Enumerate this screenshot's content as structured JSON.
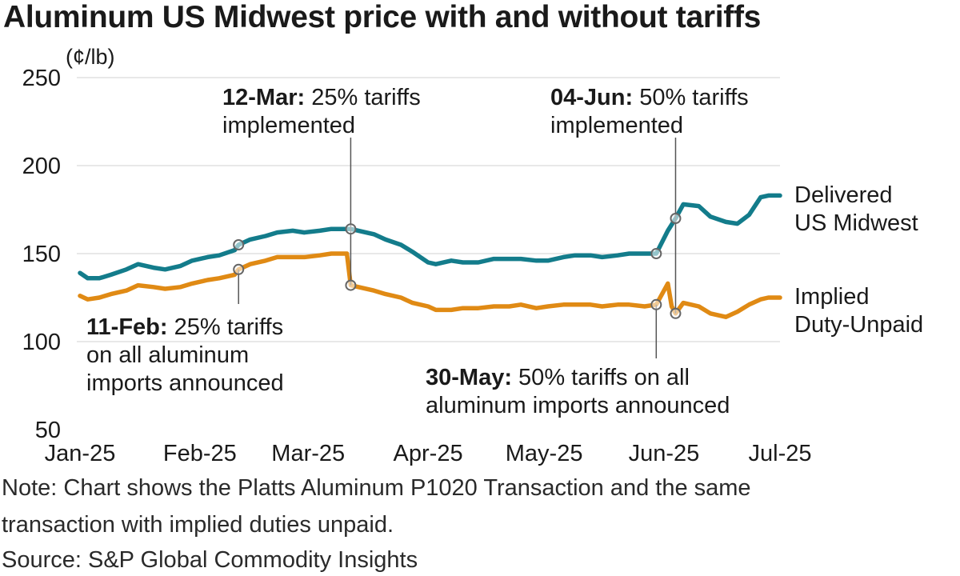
{
  "title": "Aluminum US Midwest price with and without tariffs",
  "notes": {
    "note_line1": "Note: Chart shows the Platts Aluminum P1020 Transaction and the same",
    "note_line2": "transaction with implied duties unpaid.",
    "source": "Source: S&P Global Commodity Insights"
  },
  "colors": {
    "midwest": "#137c8b",
    "unpaid": "#e08a14",
    "grid": "#d9d9d9",
    "text": "#1a1a1a"
  },
  "chart_data": {
    "type": "line",
    "title": "Aluminum US Midwest price with and without tariffs",
    "unit_label": "(¢/lb)",
    "xlabel": "",
    "ylabel": "",
    "ylim": [
      50,
      250
    ],
    "yticks": [
      50,
      100,
      150,
      200,
      250
    ],
    "grid": true,
    "x_range": [
      "2025-01-01",
      "2025-07-01"
    ],
    "x_tick_labels": [
      "Jan-25",
      "Feb-25",
      "Mar-25",
      "Apr-25",
      "May-25",
      "Jun-25",
      "Jul-25"
    ],
    "x_tick_dates": [
      "2025-01-01",
      "2025-02-01",
      "2025-03-01",
      "2025-04-01",
      "2025-05-01",
      "2025-06-01",
      "2025-07-01"
    ],
    "series": [
      {
        "name": "Delivered US Midwest",
        "label_lines": [
          "Delivered",
          "US Midwest"
        ],
        "color_key": "midwest",
        "x": [
          "2025-01-01",
          "2025-01-03",
          "2025-01-06",
          "2025-01-09",
          "2025-01-13",
          "2025-01-16",
          "2025-01-20",
          "2025-01-23",
          "2025-01-27",
          "2025-01-30",
          "2025-02-03",
          "2025-02-06",
          "2025-02-10",
          "2025-02-11",
          "2025-02-14",
          "2025-02-18",
          "2025-02-21",
          "2025-02-25",
          "2025-02-28",
          "2025-03-04",
          "2025-03-07",
          "2025-03-12",
          "2025-03-14",
          "2025-03-18",
          "2025-03-21",
          "2025-03-25",
          "2025-03-28",
          "2025-04-01",
          "2025-04-03",
          "2025-04-07",
          "2025-04-10",
          "2025-04-14",
          "2025-04-18",
          "2025-04-22",
          "2025-04-25",
          "2025-04-29",
          "2025-05-02",
          "2025-05-06",
          "2025-05-09",
          "2025-05-13",
          "2025-05-16",
          "2025-05-20",
          "2025-05-23",
          "2025-05-27",
          "2025-05-30",
          "2025-06-02",
          "2025-06-04",
          "2025-06-06",
          "2025-06-10",
          "2025-06-13",
          "2025-06-17",
          "2025-06-20",
          "2025-06-23",
          "2025-06-26",
          "2025-06-28",
          "2025-07-01"
        ],
        "values": [
          139,
          136,
          136,
          138,
          141,
          144,
          142,
          141,
          143,
          146,
          148,
          149,
          152,
          155,
          158,
          160,
          162,
          163,
          162,
          163,
          164,
          164,
          163,
          161,
          158,
          155,
          151,
          145,
          144,
          146,
          145,
          145,
          147,
          147,
          147,
          146,
          146,
          148,
          149,
          149,
          148,
          149,
          150,
          150,
          150,
          163,
          170,
          178,
          177,
          171,
          168,
          167,
          172,
          182,
          183,
          183
        ]
      },
      {
        "name": "Implied Duty-Unpaid",
        "label_lines": [
          "Implied",
          "Duty-Unpaid"
        ],
        "color_key": "unpaid",
        "x": [
          "2025-01-01",
          "2025-01-03",
          "2025-01-06",
          "2025-01-09",
          "2025-01-13",
          "2025-01-16",
          "2025-01-20",
          "2025-01-23",
          "2025-01-27",
          "2025-01-30",
          "2025-02-03",
          "2025-02-06",
          "2025-02-10",
          "2025-02-11",
          "2025-02-14",
          "2025-02-18",
          "2025-02-21",
          "2025-02-25",
          "2025-02-28",
          "2025-03-04",
          "2025-03-07",
          "2025-03-11",
          "2025-03-12",
          "2025-03-14",
          "2025-03-18",
          "2025-03-21",
          "2025-03-25",
          "2025-03-28",
          "2025-04-01",
          "2025-04-03",
          "2025-04-07",
          "2025-04-10",
          "2025-04-14",
          "2025-04-18",
          "2025-04-22",
          "2025-04-25",
          "2025-04-29",
          "2025-05-02",
          "2025-05-06",
          "2025-05-09",
          "2025-05-13",
          "2025-05-16",
          "2025-05-20",
          "2025-05-23",
          "2025-05-27",
          "2025-05-30",
          "2025-06-02",
          "2025-06-03",
          "2025-06-04",
          "2025-06-06",
          "2025-06-10",
          "2025-06-13",
          "2025-06-17",
          "2025-06-20",
          "2025-06-23",
          "2025-06-26",
          "2025-06-28",
          "2025-07-01"
        ],
        "values": [
          126,
          124,
          125,
          127,
          129,
          132,
          131,
          130,
          131,
          133,
          135,
          136,
          138,
          141,
          144,
          146,
          148,
          148,
          148,
          149,
          150,
          150,
          132,
          131,
          129,
          127,
          125,
          122,
          120,
          118,
          118,
          119,
          119,
          120,
          120,
          121,
          119,
          120,
          121,
          121,
          121,
          120,
          121,
          121,
          120,
          121,
          133,
          120,
          116,
          122,
          120,
          116,
          114,
          117,
          121,
          124,
          125,
          125
        ]
      }
    ],
    "annotations": [
      {
        "date": "2025-02-11",
        "bold": "11-Feb:",
        "line1_rest": " 25% tariffs",
        "lines": [
          "on all aluminum",
          "imports announced"
        ],
        "values": [
          155,
          141
        ]
      },
      {
        "date": "2025-03-12",
        "bold": "12-Mar:",
        "line1_rest": " 25% tariffs",
        "lines": [
          "implemented"
        ],
        "values": [
          164,
          132
        ]
      },
      {
        "date": "2025-05-30",
        "bold": "30-May:",
        "line1_rest": " 50% tariffs on all",
        "lines": [
          "aluminum imports announced"
        ],
        "values": [
          150,
          121
        ]
      },
      {
        "date": "2025-06-04",
        "bold": "04-Jun:",
        "line1_rest": " 50% tariffs",
        "lines": [
          "implemented"
        ],
        "values": [
          170,
          116
        ]
      }
    ]
  }
}
